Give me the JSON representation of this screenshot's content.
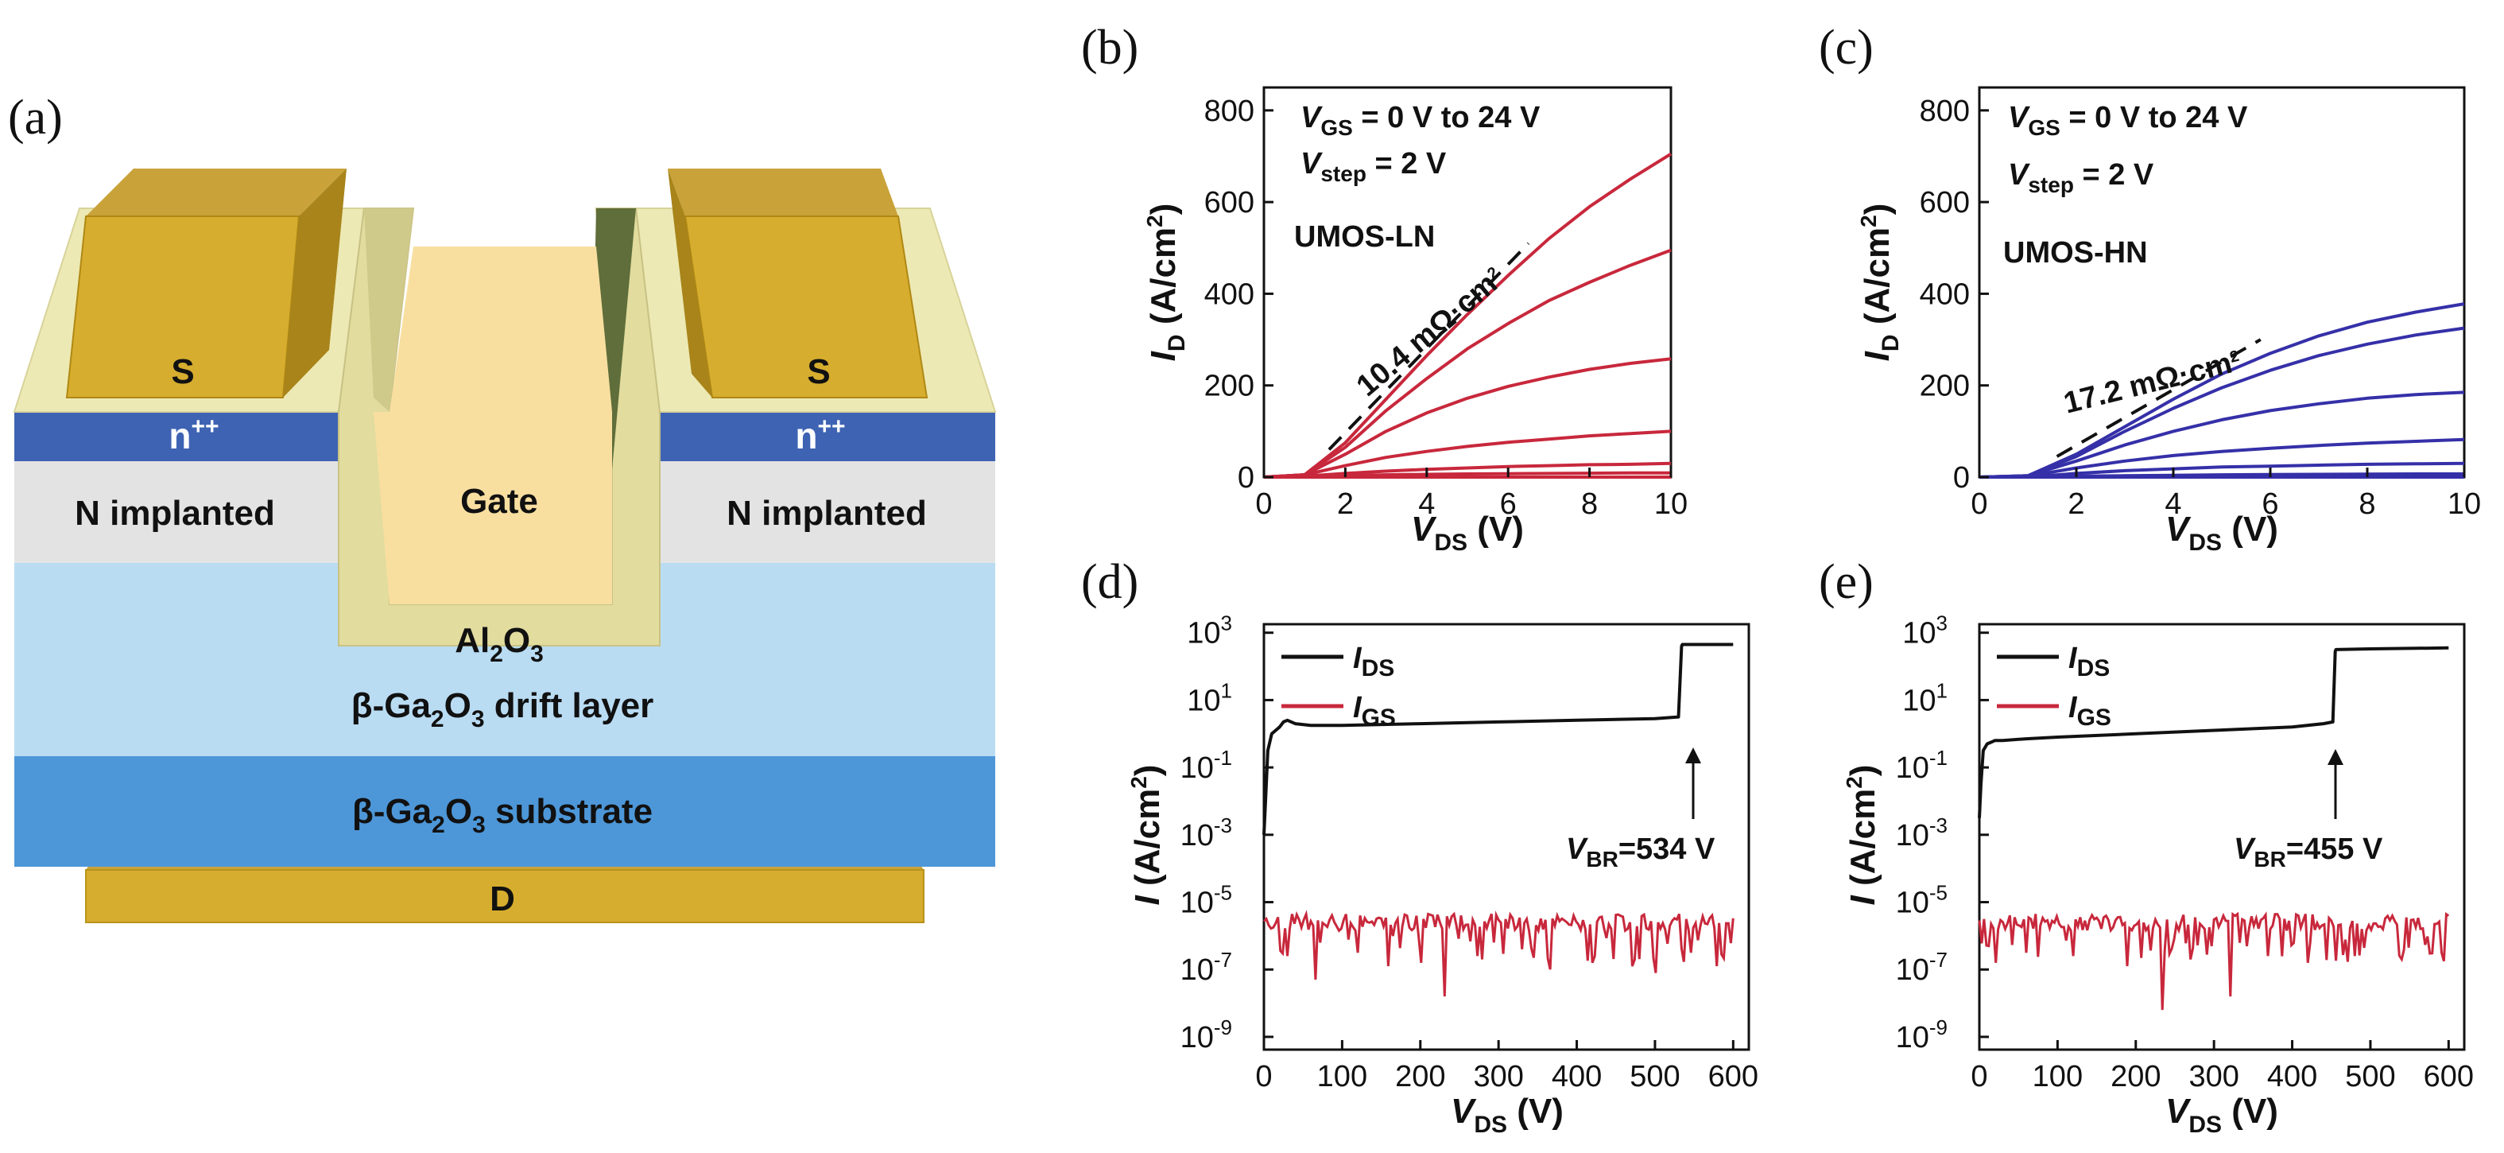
{
  "panels": {
    "a": "(a)",
    "b": "(b)",
    "c": "(c)",
    "d": "(d)",
    "e": "(e)"
  },
  "device": {
    "source_left": "S",
    "source_right": "S",
    "nplus_left_base": "n",
    "nplus_left_sup": "++",
    "nplus_right_base": "n",
    "nplus_right_sup": "++",
    "implant_left": "N implanted",
    "implant_right": "N implanted",
    "gate": "Gate",
    "oxide_base": "Al",
    "oxide_sub1": "2",
    "oxide_mid": "O",
    "oxide_sub2": "3",
    "drift_pre": "β-Ga",
    "drift_sub1": "2",
    "drift_mid": "O",
    "drift_sub2": "3",
    "drift_post": " drift layer",
    "substrate_pre": "β-Ga",
    "substrate_sub1": "2",
    "substrate_mid": "O",
    "substrate_sub2": "3",
    "substrate_post": " substrate",
    "drain": "D",
    "colors": {
      "metal": "#d6ad2e",
      "metal_dark": "#a8841a",
      "oxide": "#f8dfa0",
      "oxide_frame": "#e8e3a8",
      "nplus": "#3f63b3",
      "implant": "#e3e3e3",
      "drift": "#b9dcf3",
      "substrate": "#4d97d8"
    }
  },
  "chart_data": [
    {
      "id": "b",
      "type": "line",
      "xlabel_base": "V",
      "xlabel_sub": "DS",
      "xlabel_unit": " (V)",
      "ylabel_base": "I",
      "ylabel_sub": "D",
      "ylabel_unit": " (A/cm",
      "ylabel_sup": "2",
      "ylabel_close": ")",
      "xlim": [
        0,
        10
      ],
      "ylim": [
        0,
        850
      ],
      "xticks": [
        "0",
        "2",
        "4",
        "6",
        "8",
        "10"
      ],
      "yticks": [
        "0",
        "200",
        "400",
        "600",
        "800"
      ],
      "color": "#c8283c",
      "note_line1_base": "V",
      "note_line1_sub": "GS",
      "note_line1_rest": " = 0 V to 24 V",
      "note_line2_base": "V",
      "note_line2_sub": "step",
      "note_line2_rest": " = 2 V",
      "device_name": "UMOS-LN",
      "ron_base": "10.4 mΩ·cm",
      "ron_sup": "2",
      "series": [
        {
          "x": [
            0,
            1,
            2,
            3,
            4,
            5,
            6,
            7,
            8,
            9,
            10
          ],
          "y": [
            0,
            0,
            0,
            0,
            0,
            0,
            0,
            0,
            0,
            0,
            0
          ]
        },
        {
          "x": [
            0,
            1,
            2,
            3,
            4,
            5,
            6,
            7,
            8,
            9,
            10
          ],
          "y": [
            0,
            0,
            3,
            5,
            6,
            7,
            7.5,
            8,
            8.5,
            9,
            9
          ]
        },
        {
          "x": [
            0,
            1,
            2,
            3,
            4,
            5,
            6,
            7,
            8,
            9,
            10
          ],
          "y": [
            0,
            2,
            8,
            13,
            17,
            20,
            23,
            25,
            27,
            28,
            30
          ]
        },
        {
          "x": [
            0,
            1,
            2,
            3,
            4,
            5,
            6,
            7,
            8,
            9,
            10
          ],
          "y": [
            0,
            5,
            25,
            43,
            56,
            67,
            76,
            83,
            90,
            95,
            100
          ]
        },
        {
          "x": [
            0,
            1,
            2,
            3,
            4,
            5,
            6,
            7,
            8,
            9,
            10
          ],
          "y": [
            0,
            5,
            50,
            100,
            140,
            172,
            198,
            218,
            235,
            248,
            258
          ]
        },
        {
          "x": [
            0,
            1,
            2,
            3,
            4,
            5,
            6,
            7,
            8,
            9,
            10
          ],
          "y": [
            0,
            5,
            65,
            145,
            215,
            280,
            335,
            385,
            425,
            462,
            495
          ]
        },
        {
          "x": [
            0,
            1,
            2,
            3,
            4,
            5,
            6,
            7,
            8,
            9,
            10
          ],
          "y": [
            0,
            5,
            75,
            170,
            265,
            355,
            440,
            520,
            590,
            650,
            705
          ]
        }
      ],
      "fit": {
        "x": [
          1.6,
          6.5
        ],
        "y": [
          60,
          510
        ]
      }
    },
    {
      "id": "c",
      "type": "line",
      "xlabel_base": "V",
      "xlabel_sub": "DS",
      "xlabel_unit": " (V)",
      "ylabel_base": "I",
      "ylabel_sub": "D",
      "ylabel_unit": " (A/cm",
      "ylabel_sup": "2",
      "ylabel_close": ")",
      "xlim": [
        0,
        10
      ],
      "ylim": [
        0,
        850
      ],
      "xticks": [
        "0",
        "2",
        "4",
        "6",
        "8",
        "10"
      ],
      "yticks": [
        "0",
        "200",
        "400",
        "600",
        "800"
      ],
      "color": "#3530a8",
      "note_line1_base": "V",
      "note_line1_sub": "GS",
      "note_line1_rest": " = 0 V to 24 V",
      "note_line2_base": "V",
      "note_line2_sub": "step",
      "note_line2_rest": " = 2 V",
      "device_name": "UMOS-HN",
      "ron_base": "17.2 mΩ·cm",
      "ron_sup": "2",
      "series": [
        {
          "x": [
            0,
            1,
            2,
            3,
            4,
            5,
            6,
            7,
            8,
            9,
            10
          ],
          "y": [
            0,
            0,
            0,
            0,
            0,
            0,
            0,
            0,
            0,
            0,
            0
          ]
        },
        {
          "x": [
            0,
            1,
            2,
            3,
            4,
            5,
            6,
            7,
            8,
            9,
            10
          ],
          "y": [
            0,
            0,
            2,
            3,
            4,
            5,
            5.5,
            6,
            6.5,
            7,
            7
          ]
        },
        {
          "x": [
            0,
            1,
            2,
            3,
            4,
            5,
            6,
            7,
            8,
            9,
            10
          ],
          "y": [
            0,
            0,
            8,
            14,
            18,
            22,
            24,
            26,
            28,
            29,
            30
          ]
        },
        {
          "x": [
            0,
            1,
            2,
            3,
            4,
            5,
            6,
            7,
            8,
            9,
            10
          ],
          "y": [
            0,
            2,
            20,
            35,
            47,
            56,
            63,
            69,
            74,
            78,
            82
          ]
        },
        {
          "x": [
            0,
            1,
            2,
            3,
            4,
            5,
            6,
            7,
            8,
            9,
            10
          ],
          "y": [
            0,
            3,
            35,
            70,
            100,
            125,
            145,
            160,
            172,
            180,
            185
          ]
        },
        {
          "x": [
            0,
            1,
            2,
            3,
            4,
            5,
            6,
            7,
            8,
            9,
            10
          ],
          "y": [
            0,
            3,
            45,
            100,
            150,
            195,
            233,
            265,
            290,
            310,
            325
          ]
        },
        {
          "x": [
            0,
            1,
            2,
            3,
            4,
            5,
            6,
            7,
            8,
            9,
            10
          ],
          "y": [
            0,
            3,
            50,
            110,
            170,
            225,
            270,
            308,
            338,
            360,
            378
          ]
        }
      ],
      "fit": {
        "x": [
          1.6,
          5.8
        ],
        "y": [
          45,
          300
        ]
      }
    },
    {
      "id": "d",
      "type": "line",
      "yscale": "log",
      "xlabel_base": "V",
      "xlabel_sub": "DS",
      "xlabel_unit": " (V)",
      "ylabel_base": "I",
      "ylabel_unit": " (A/cm",
      "ylabel_sup": "2",
      "ylabel_close": ")",
      "xlim": [
        0,
        620
      ],
      "ylim_exp": [
        -9,
        3
      ],
      "xticks": [
        "0",
        "100",
        "200",
        "300",
        "400",
        "500",
        "600"
      ],
      "yticks": [
        {
          "base": "10",
          "sup": "3"
        },
        {
          "base": "10",
          "sup": "1"
        },
        {
          "base": "10",
          "sup": "-1"
        },
        {
          "base": "10",
          "sup": "-3"
        },
        {
          "base": "10",
          "sup": "-5"
        },
        {
          "base": "10",
          "sup": "-7"
        },
        {
          "base": "10",
          "sup": "-9"
        }
      ],
      "legend": [
        {
          "base": "I",
          "sub": "DS",
          "color": "#111111"
        },
        {
          "base": "I",
          "sub": "GS",
          "color": "#c8283c"
        }
      ],
      "breakdown_base": "V",
      "breakdown_sub": "BR",
      "breakdown_rest": "=534 V",
      "breakdown_v": 534,
      "ids": {
        "x": [
          0,
          2,
          5,
          10,
          15,
          20,
          25,
          30,
          40,
          60,
          100,
          200,
          300,
          400,
          500,
          530,
          534,
          535,
          600
        ],
        "log10": [
          -3,
          -2,
          -0.5,
          0,
          0.1,
          0.2,
          0.35,
          0.4,
          0.3,
          0.25,
          0.25,
          0.3,
          0.35,
          0.4,
          0.45,
          0.5,
          2.6,
          2.65,
          2.65
        ]
      },
      "igs_base_log10": -5.6,
      "igs_dips": [
        {
          "x": 30,
          "log10": -6.6
        },
        {
          "x": 65,
          "log10": -7.3
        },
        {
          "x": 120,
          "log10": -6.5
        },
        {
          "x": 160,
          "log10": -6.9
        },
        {
          "x": 200,
          "log10": -6.8
        },
        {
          "x": 230,
          "log10": -7.8
        },
        {
          "x": 280,
          "log10": -6.7
        },
        {
          "x": 330,
          "log10": -6.4
        },
        {
          "x": 365,
          "log10": -7.0
        },
        {
          "x": 420,
          "log10": -6.8
        },
        {
          "x": 470,
          "log10": -6.9
        },
        {
          "x": 500,
          "log10": -7.1
        },
        {
          "x": 545,
          "log10": -6.5
        },
        {
          "x": 580,
          "log10": -6.9
        }
      ]
    },
    {
      "id": "e",
      "type": "line",
      "yscale": "log",
      "xlabel_base": "V",
      "xlabel_sub": "DS",
      "xlabel_unit": " (V)",
      "ylabel_base": "I",
      "ylabel_unit": " (A/cm",
      "ylabel_sup": "2",
      "ylabel_close": ")",
      "xlim": [
        0,
        620
      ],
      "ylim_exp": [
        -9,
        3
      ],
      "xticks": [
        "0",
        "100",
        "200",
        "300",
        "400",
        "500",
        "600"
      ],
      "yticks": [
        {
          "base": "10",
          "sup": "3"
        },
        {
          "base": "10",
          "sup": "1"
        },
        {
          "base": "10",
          "sup": "-1"
        },
        {
          "base": "10",
          "sup": "-3"
        },
        {
          "base": "10",
          "sup": "-5"
        },
        {
          "base": "10",
          "sup": "-7"
        },
        {
          "base": "10",
          "sup": "-9"
        }
      ],
      "legend": [
        {
          "base": "I",
          "sub": "DS",
          "color": "#111111"
        },
        {
          "base": "I",
          "sub": "GS",
          "color": "#c8283c"
        }
      ],
      "breakdown_base": "V",
      "breakdown_sub": "BR",
      "breakdown_rest": "=455 V",
      "breakdown_v": 455,
      "ids": {
        "x": [
          0,
          2,
          5,
          10,
          15,
          20,
          30,
          60,
          100,
          200,
          300,
          400,
          440,
          452,
          455,
          456,
          500,
          600
        ],
        "log10": [
          -2.5,
          -1.5,
          -0.5,
          -0.3,
          -0.25,
          -0.2,
          -0.2,
          -0.15,
          -0.1,
          0,
          0.1,
          0.2,
          0.3,
          0.35,
          2.45,
          2.5,
          2.52,
          2.55
        ]
      },
      "igs_base_log10": -5.6,
      "igs_dips": [
        {
          "x": 20,
          "log10": -6.8
        },
        {
          "x": 60,
          "log10": -6.5
        },
        {
          "x": 120,
          "log10": -6.6
        },
        {
          "x": 190,
          "log10": -6.9
        },
        {
          "x": 235,
          "log10": -8.2
        },
        {
          "x": 270,
          "log10": -6.7
        },
        {
          "x": 320,
          "log10": -7.8
        },
        {
          "x": 370,
          "log10": -6.6
        },
        {
          "x": 420,
          "log10": -6.8
        },
        {
          "x": 480,
          "log10": -6.6
        },
        {
          "x": 540,
          "log10": -6.7
        },
        {
          "x": 590,
          "log10": -6.5
        }
      ]
    }
  ]
}
